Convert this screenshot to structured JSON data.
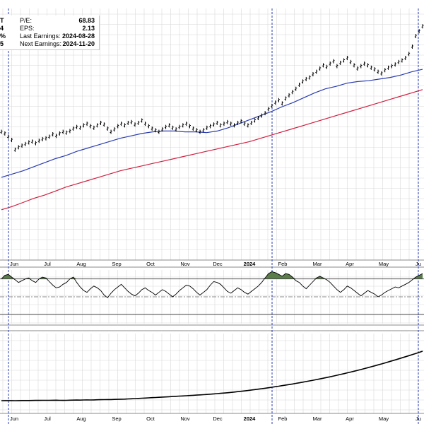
{
  "info_panel": {
    "left_clipped": [
      "T",
      "4",
      "%",
      "5"
    ],
    "rows": [
      {
        "label": "P/E:",
        "value": "68.83"
      },
      {
        "label": "EPS:",
        "value": "2.13"
      },
      {
        "label": "Last Earnings:",
        "value": "2024-08-28"
      },
      {
        "label": "Next Earnings:",
        "value": "2024-11-20"
      }
    ]
  },
  "colors": {
    "price": "#000000",
    "sma_short": "#2a3cb0",
    "sma_long": "#d02040",
    "oscillator_fill": "#5a7d4a",
    "grid": "#d8d8d8",
    "event_line": "#2a3cb0"
  },
  "chart_data": [
    {
      "type": "line",
      "panel": "price",
      "x_labels": [
        "Jun",
        "Jul",
        "Aug",
        "Sep",
        "Oct",
        "Nov",
        "Dec",
        "2024",
        "Feb",
        "Mar",
        "Apr",
        "May",
        "Ju"
      ],
      "event_markers": [
        "2023-06-01",
        "2024-02-20",
        "2024-05-30"
      ],
      "series": [
        {
          "role": "price",
          "style": "ohlc-bars",
          "values": [
            30.8,
            30.6,
            30.2,
            29.8,
            28.6,
            28.9,
            29.1,
            29.3,
            29.5,
            29.6,
            29.4,
            29.7,
            29.9,
            30.0,
            30.2,
            30.5,
            30.3,
            30.6,
            30.8,
            30.7,
            30.9,
            31.2,
            31.4,
            31.3,
            31.6,
            31.8,
            31.5,
            31.3,
            31.6,
            31.9,
            31.7,
            31.2,
            30.8,
            31.1,
            31.5,
            31.8,
            31.6,
            31.9,
            32.0,
            31.7,
            31.9,
            32.2,
            31.8,
            31.5,
            31.2,
            31.0,
            30.8,
            31.1,
            31.4,
            31.6,
            31.3,
            31.1,
            31.4,
            31.6,
            31.8,
            31.5,
            31.2,
            31.0,
            30.8,
            31.0,
            31.3,
            31.5,
            31.7,
            31.9,
            31.6,
            31.8,
            32.0,
            31.8,
            31.6,
            31.9,
            32.1,
            31.8,
            31.6,
            31.9,
            32.2,
            32.5,
            32.8,
            33.1,
            33.6,
            34.0,
            34.4,
            34.7,
            34.3,
            34.9,
            35.3,
            35.7,
            36.1,
            36.6,
            37.0,
            37.3,
            37.5,
            37.9,
            38.2,
            38.6,
            39.0,
            38.8,
            39.2,
            39.5,
            38.9,
            39.3,
            39.6,
            39.9,
            39.4,
            39.0,
            38.6,
            38.9,
            39.2,
            39.0,
            38.7,
            38.5,
            38.2,
            38.0,
            38.4,
            38.7,
            38.9,
            39.1,
            39.4,
            39.6,
            39.9,
            40.4,
            41.3,
            42.6,
            43.2,
            43.8
          ]
        },
        {
          "role": "sma_short",
          "values": [
            25.2,
            25.6,
            26.0,
            26.5,
            27.0,
            27.5,
            27.9,
            28.4,
            28.8,
            29.2,
            29.6,
            30.0,
            30.3,
            30.6,
            30.8,
            30.9,
            30.9,
            30.8,
            30.8,
            30.7,
            30.9,
            31.3,
            31.8,
            32.3,
            32.8,
            33.3,
            33.9,
            34.4,
            35.0,
            35.6,
            36.1,
            36.4,
            36.8,
            37.0,
            37.1,
            37.3,
            37.5,
            37.8,
            38.2,
            38.5
          ]
        },
        {
          "role": "sma_long",
          "values": [
            21.2,
            21.6,
            22.1,
            22.6,
            23.0,
            23.5,
            24.0,
            24.4,
            24.8,
            25.2,
            25.6,
            26.0,
            26.3,
            26.6,
            26.9,
            27.2,
            27.5,
            27.8,
            28.1,
            28.4,
            28.7,
            29.0,
            29.3,
            29.6,
            30.0,
            30.4,
            30.8,
            31.2,
            31.6,
            32.0,
            32.4,
            32.8,
            33.2,
            33.6,
            34.0,
            34.4,
            34.8,
            35.2,
            35.6,
            36.0
          ]
        }
      ]
    },
    {
      "type": "area",
      "panel": "oscillator",
      "upper_threshold": 70,
      "lower_threshold": 30,
      "midline": 50,
      "ylim": [
        20,
        80
      ],
      "values": [
        70,
        74,
        75,
        72,
        69,
        66,
        68,
        70,
        71,
        68,
        66,
        70,
        72,
        71,
        67,
        63,
        60,
        61,
        64,
        66,
        70,
        72,
        66,
        61,
        57,
        55,
        59,
        62,
        60,
        57,
        52,
        49,
        54,
        58,
        61,
        64,
        60,
        56,
        53,
        51,
        54,
        58,
        60,
        57,
        55,
        52,
        55,
        58,
        56,
        53,
        50,
        53,
        57,
        60,
        63,
        62,
        59,
        55,
        52,
        55,
        58,
        63,
        67,
        66,
        64,
        60,
        56,
        54,
        57,
        60,
        58,
        55,
        53,
        56,
        59,
        62,
        66,
        71,
        76,
        78,
        77,
        75,
        73,
        76,
        75,
        72,
        68,
        66,
        62,
        59,
        63,
        67,
        71,
        73,
        71,
        69,
        66,
        62,
        58,
        55,
        58,
        62,
        60,
        57,
        54,
        51,
        54,
        57,
        55,
        53,
        50,
        52,
        55,
        57,
        59,
        61,
        60,
        62,
        64,
        66,
        69,
        72,
        74,
        76
      ]
    },
    {
      "type": "line",
      "panel": "relative",
      "values": [
        20.0,
        20.1,
        20.2,
        20.1,
        20.0,
        20.1,
        20.3,
        20.4,
        20.3,
        20.5,
        20.7,
        20.6,
        20.8,
        20.9,
        20.8,
        21.0,
        21.1,
        20.9,
        20.7,
        20.9,
        21.1,
        21.3,
        21.5,
        21.4,
        21.6,
        21.8,
        21.7,
        21.9,
        22.1,
        22.3,
        22.5,
        22.7,
        22.6,
        22.9,
        23.2,
        23.5,
        23.7,
        24.1,
        24.5,
        24.9,
        25.3,
        25.8,
        26.2,
        26.6,
        27.1,
        27.5,
        27.9,
        28.4,
        28.8,
        29.3,
        29.7,
        30.2,
        30.7,
        31.1,
        31.6,
        32.0,
        32.5,
        33.0,
        33.5,
        34.0,
        34.6,
        35.2,
        35.9,
        36.5,
        37.2,
        37.9,
        38.6,
        39.4,
        40.2,
        41.1,
        42.0,
        42.9,
        43.9,
        44.9,
        45.9,
        46.9,
        48.0,
        49.1,
        50.3,
        51.5,
        52.7,
        53.9,
        55.2,
        56.5,
        57.8,
        59.1,
        60.5,
        61.9,
        63.3,
        64.8,
        66.3,
        67.8,
        69.4,
        71.0,
        72.6,
        74.2,
        75.9,
        77.7,
        79.5,
        81.3,
        83.2,
        85.1,
        87.0,
        89.0,
        91.0,
        93.0,
        95.1,
        97.2,
        99.4,
        101.6,
        103.8,
        106.1,
        108.4,
        110.7,
        113.1,
        115.5,
        117.9,
        120.4,
        122.9,
        125.4,
        127.9,
        130.5,
        133.1,
        135.8
      ]
    }
  ]
}
